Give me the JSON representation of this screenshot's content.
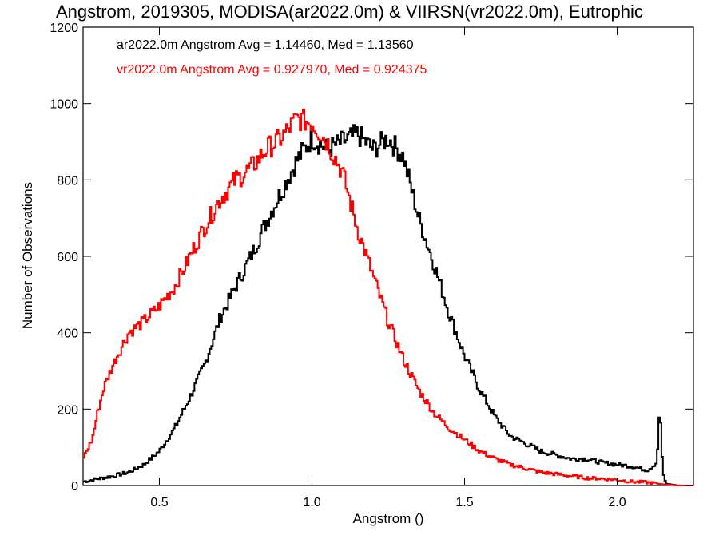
{
  "chart_data": {
    "type": "line",
    "step": true,
    "title": "Angstrom, 2019305, MODISA(ar2022.0m) & VIIRSN(vr2022.0m), Eutrophic",
    "xlabel": "Angstrom ()",
    "ylabel": "Number of Observations",
    "xlim": [
      0.25,
      2.25
    ],
    "ylim": [
      0,
      1200
    ],
    "x_ticks": [
      0.5,
      1.0,
      1.5,
      2.0
    ],
    "x_tick_labels": [
      "0.5",
      "1.0",
      "1.5",
      "2.0"
    ],
    "y_ticks": [
      0,
      200,
      400,
      600,
      800,
      1000,
      1200
    ],
    "y_tick_labels": [
      "0",
      "200",
      "400",
      "600",
      "800",
      "1000",
      "1200"
    ],
    "grid": false,
    "legend_position": "top-left",
    "series": [
      {
        "name": "ar2022.0m",
        "label": "ar2022.0m Angstrom Avg = 1.14460, Med = 1.13560",
        "color": "#000000",
        "x": [
          0.25,
          0.3,
          0.35,
          0.4,
          0.45,
          0.5,
          0.55,
          0.6,
          0.65,
          0.7,
          0.75,
          0.8,
          0.85,
          0.9,
          0.95,
          1.0,
          1.05,
          1.1,
          1.15,
          1.2,
          1.25,
          1.3,
          1.35,
          1.4,
          1.45,
          1.5,
          1.55,
          1.6,
          1.65,
          1.7,
          1.75,
          1.8,
          1.85,
          1.9,
          1.95,
          2.0,
          2.05,
          2.1,
          2.13,
          2.14,
          2.15,
          2.16,
          2.2,
          2.25
        ],
        "y": [
          10,
          18,
          25,
          35,
          55,
          90,
          150,
          230,
          320,
          440,
          520,
          600,
          690,
          770,
          850,
          910,
          880,
          900,
          920,
          880,
          910,
          860,
          700,
          580,
          450,
          340,
          250,
          180,
          130,
          110,
          90,
          80,
          70,
          70,
          60,
          55,
          50,
          40,
          60,
          210,
          30,
          5,
          0,
          0
        ]
      },
      {
        "name": "vr2022.0m",
        "label": "vr2022.0m Angstrom Avg = 0.927970, Med = 0.924375",
        "color": "#ff0000",
        "x": [
          0.25,
          0.28,
          0.3,
          0.32,
          0.35,
          0.4,
          0.45,
          0.5,
          0.55,
          0.6,
          0.65,
          0.7,
          0.75,
          0.8,
          0.85,
          0.9,
          0.95,
          1.0,
          1.05,
          1.1,
          1.15,
          1.2,
          1.25,
          1.3,
          1.35,
          1.4,
          1.45,
          1.5,
          1.55,
          1.6,
          1.65,
          1.7,
          1.75,
          1.8,
          1.85,
          1.9,
          1.95,
          2.0,
          2.05,
          2.1,
          2.15,
          2.2,
          2.25
        ],
        "y": [
          70,
          120,
          200,
          260,
          320,
          400,
          430,
          470,
          520,
          600,
          680,
          750,
          800,
          830,
          880,
          910,
          960,
          950,
          900,
          820,
          670,
          550,
          430,
          330,
          250,
          190,
          150,
          120,
          90,
          70,
          55,
          45,
          35,
          30,
          25,
          20,
          18,
          15,
          10,
          8,
          3,
          0,
          0
        ]
      }
    ]
  }
}
